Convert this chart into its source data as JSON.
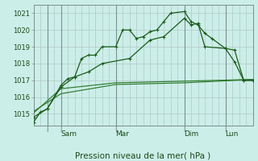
{
  "xlabel": "Pression niveau de la mer( hPa )",
  "background_color": "#cceee8",
  "grid_color": "#b0c8c8",
  "line_color_main": "#1a5c1a",
  "line_color_flat": "#2d7a2d",
  "ylim": [
    1014.3,
    1021.5
  ],
  "yticks": [
    1015,
    1016,
    1017,
    1018,
    1019,
    1020,
    1021
  ],
  "xlim": [
    0,
    96
  ],
  "x_day_labels": [
    {
      "label": "Sam",
      "x": 12
    },
    {
      "label": "Mar",
      "x": 36
    },
    {
      "label": "Dim",
      "x": 66
    },
    {
      "label": "Lun",
      "x": 84
    }
  ],
  "x_day_lines": [
    6,
    12,
    36,
    66,
    84
  ],
  "series1_x": [
    0,
    3,
    6,
    12,
    15,
    18,
    21,
    24,
    27,
    30,
    36,
    39,
    42,
    45,
    48,
    51,
    54,
    57,
    60,
    66,
    69,
    72,
    75,
    78,
    84,
    88,
    92,
    96
  ],
  "series1_y": [
    1014.5,
    1015.1,
    1015.3,
    1016.7,
    1017.1,
    1017.2,
    1018.3,
    1018.5,
    1018.5,
    1019.0,
    1019.0,
    1020.0,
    1020.0,
    1019.5,
    1019.6,
    1019.9,
    1020.0,
    1020.5,
    1021.0,
    1021.1,
    1020.5,
    1020.3,
    1019.8,
    1019.5,
    1018.9,
    1018.1,
    1017.0,
    1017.0
  ],
  "series2_x": [
    0,
    6,
    12,
    18,
    24,
    30,
    42,
    51,
    57,
    66,
    69,
    72,
    75,
    84,
    88,
    92,
    96
  ],
  "series2_y": [
    1014.8,
    1015.3,
    1016.6,
    1017.2,
    1017.5,
    1018.0,
    1018.3,
    1019.4,
    1019.6,
    1020.7,
    1020.3,
    1020.4,
    1019.0,
    1018.9,
    1018.8,
    1017.0,
    1017.0
  ],
  "series3_x": [
    0,
    12,
    36,
    66,
    96
  ],
  "series3_y": [
    1015.05,
    1016.5,
    1016.85,
    1016.95,
    1017.05
  ],
  "series4_x": [
    0,
    12,
    36,
    66,
    96
  ],
  "series4_y": [
    1015.15,
    1016.2,
    1016.75,
    1016.85,
    1017.05
  ]
}
